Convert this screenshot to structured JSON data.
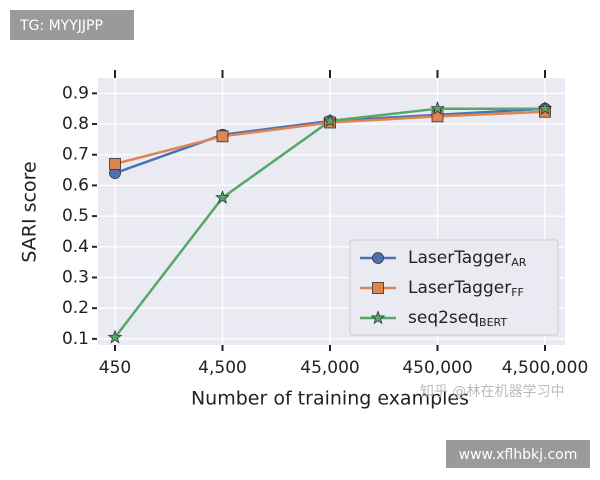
{
  "chart_data": {
    "type": "line",
    "xlabel": "Number of training examples",
    "ylabel": "SARI score",
    "categories": [
      "450",
      "4,500",
      "45,000",
      "450,000",
      "4,500,000"
    ],
    "series": [
      {
        "name": "LaserTagger",
        "subscript": "AR",
        "color": "#4c72b0",
        "marker": "circle",
        "values": [
          0.64,
          0.765,
          0.81,
          0.83,
          0.85
        ]
      },
      {
        "name": "LaserTagger",
        "subscript": "FF",
        "color": "#dd8452",
        "marker": "square",
        "values": [
          0.67,
          0.76,
          0.805,
          0.825,
          0.84
        ]
      },
      {
        "name": "seq2seq",
        "subscript": "BERT",
        "color": "#55a868",
        "marker": "star",
        "values": [
          0.105,
          0.56,
          0.81,
          0.85,
          0.85
        ]
      }
    ],
    "ylim": [
      0.08,
      0.95
    ],
    "yticks": [
      0.1,
      0.2,
      0.3,
      0.4,
      0.5,
      0.6,
      0.7,
      0.8,
      0.9
    ],
    "grid": true,
    "legend": "lower right"
  },
  "overlays": {
    "tag": "TG: MYYJJPP",
    "credit": "知乎 @林在机器学习中",
    "site": "www.xflhbkj.com"
  }
}
